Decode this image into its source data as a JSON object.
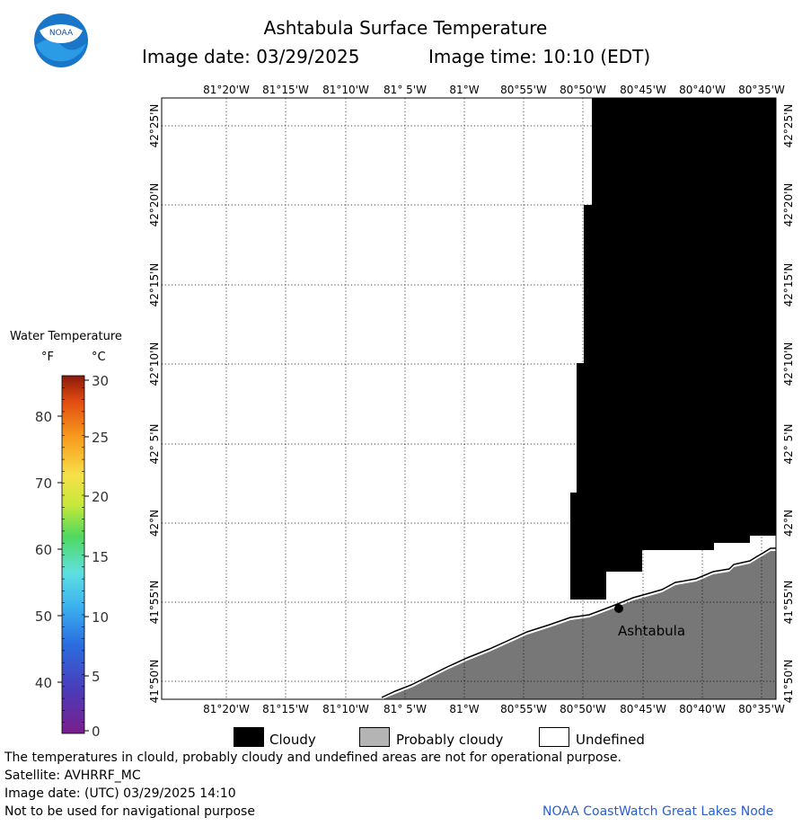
{
  "header": {
    "title": "Ashtabula Surface Temperature",
    "image_date": "Image date: 03/29/2025",
    "image_time": "Image time: 10:10 (EDT)"
  },
  "logo": {
    "text": "NOAA"
  },
  "map": {
    "lon_labels": [
      "81°20'W",
      "81°15'W",
      "81°10'W",
      "81° 5'W",
      "81°W",
      "80°55'W",
      "80°50'W",
      "80°45'W",
      "80°40'W",
      "80°35'W"
    ],
    "lat_labels": [
      "42°25'N",
      "42°20'N",
      "42°15'N",
      "42°10'N",
      "42° 5'N",
      "42°N",
      "41°55'N",
      "41°50'N"
    ],
    "place_label": "Ashtabula",
    "colors": {
      "cloudy": "#000000",
      "land": "#777777",
      "undefined": "#ffffff"
    }
  },
  "color_scale": {
    "title": "Water Temperature",
    "unit_f": "°F",
    "unit_c": "°C",
    "f_ticks": [
      "80",
      "70",
      "60",
      "50",
      "40"
    ],
    "c_ticks": [
      "30",
      "25",
      "20",
      "15",
      "10",
      "5",
      "0"
    ]
  },
  "legend": {
    "cloudy": "Cloudy",
    "probably_cloudy": "Probably cloudy",
    "undefined": "Undefined",
    "colors": {
      "cloudy": "#000000",
      "probably_cloudy": "#b4b4b4",
      "undefined": "#ffffff"
    }
  },
  "footer": {
    "note": "The temperatures in clould, probably cloudy and undefined areas are not for operational purpose.",
    "satellite": "Satellite: AVHRRF_MC",
    "utc_date": "Image date: (UTC) 03/29/2025  14:10",
    "nav_warning": "Not to be used for navigational purpose",
    "credit": "NOAA CoastWatch Great Lakes Node"
  }
}
